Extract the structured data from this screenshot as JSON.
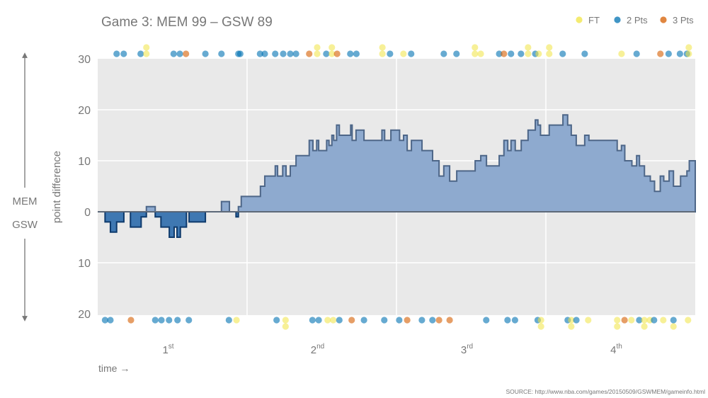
{
  "chart_data": {
    "type": "area",
    "title": "Game 3: MEM 99  –  GSW 89",
    "ylabel": "point difference",
    "xlabel": "time →",
    "team_up": "MEM",
    "team_down": "GSW",
    "source": "SOURCE: http://www.nba.com/games/20150509/GSWMEM/gameinfo.html",
    "x_unit": "game minutes",
    "xlim": [
      0,
      48
    ],
    "ylim": [
      -20,
      30
    ],
    "y_ticks": [
      {
        "value": 30,
        "label": "30"
      },
      {
        "value": 20,
        "label": "20"
      },
      {
        "value": 10,
        "label": "10"
      },
      {
        "value": 0,
        "label": "0"
      },
      {
        "value": -10,
        "label": "10"
      },
      {
        "value": -20,
        "label": "20"
      }
    ],
    "quarters": [
      {
        "base": "1",
        "sup": "st"
      },
      {
        "base": "2",
        "sup": "nd"
      },
      {
        "base": "3",
        "sup": "rd"
      },
      {
        "base": "4",
        "sup": "th"
      }
    ],
    "grid": true,
    "legend": {
      "position": "top-right",
      "items": [
        {
          "key": "FT",
          "label": "FT",
          "color": "#f0e442"
        },
        {
          "key": "2",
          "label": "2 Pts",
          "color": "#0072b2"
        },
        {
          "key": "3",
          "label": "3 Pts",
          "color": "#d55e00"
        }
      ]
    },
    "colors": {
      "lead_fill": "#8eaacf",
      "lead_stroke": "#4d6688",
      "trail_fill": "#3f78b2",
      "trail_stroke": "#0e3a6c"
    },
    "margin_steps": [
      [
        0,
        0
      ],
      [
        0.59,
        -2
      ],
      [
        1.02,
        -4
      ],
      [
        1.52,
        -2
      ],
      [
        2.1,
        0
      ],
      [
        2.63,
        -3
      ],
      [
        3.49,
        -1
      ],
      [
        3.91,
        1
      ],
      [
        4.62,
        -1
      ],
      [
        5.08,
        -3
      ],
      [
        5.75,
        -5
      ],
      [
        6.14,
        -3
      ],
      [
        6.37,
        -5
      ],
      [
        6.64,
        -3
      ],
      [
        7.13,
        0
      ],
      [
        7.34,
        -2
      ],
      [
        8.65,
        0
      ],
      [
        9.94,
        2
      ],
      [
        10.58,
        0
      ],
      [
        11.11,
        -1
      ],
      [
        11.3,
        1
      ],
      [
        11.53,
        3
      ],
      [
        13.07,
        5
      ],
      [
        13.42,
        7
      ],
      [
        14.26,
        9
      ],
      [
        14.45,
        7
      ],
      [
        14.86,
        9
      ],
      [
        15.13,
        7
      ],
      [
        15.47,
        9
      ],
      [
        15.93,
        11
      ],
      [
        16.99,
        14
      ],
      [
        17.29,
        12
      ],
      [
        17.59,
        14
      ],
      [
        17.75,
        12
      ],
      [
        18.39,
        14
      ],
      [
        18.58,
        13
      ],
      [
        18.81,
        15
      ],
      [
        18.96,
        14
      ],
      [
        19.19,
        17
      ],
      [
        19.41,
        15
      ],
      [
        20.32,
        17
      ],
      [
        20.44,
        14
      ],
      [
        20.75,
        16
      ],
      [
        21.39,
        14
      ],
      [
        22.83,
        16
      ],
      [
        23.05,
        14
      ],
      [
        23.55,
        16
      ],
      [
        24.25,
        14
      ],
      [
        24.57,
        15
      ],
      [
        24.86,
        12
      ],
      [
        25.2,
        14
      ],
      [
        26.05,
        12
      ],
      [
        26.9,
        10
      ],
      [
        27.42,
        7
      ],
      [
        27.8,
        9
      ],
      [
        28.27,
        6
      ],
      [
        28.84,
        8
      ],
      [
        30.32,
        10
      ],
      [
        30.77,
        11
      ],
      [
        31.23,
        9
      ],
      [
        32.25,
        11
      ],
      [
        32.63,
        14
      ],
      [
        32.94,
        12
      ],
      [
        33.2,
        14
      ],
      [
        33.54,
        12
      ],
      [
        34.02,
        14
      ],
      [
        34.57,
        16
      ],
      [
        35.15,
        18
      ],
      [
        35.36,
        17
      ],
      [
        35.57,
        15
      ],
      [
        36.27,
        17
      ],
      [
        37.37,
        19
      ],
      [
        37.75,
        17
      ],
      [
        38.04,
        15
      ],
      [
        38.44,
        13
      ],
      [
        39.12,
        15
      ],
      [
        39.46,
        14
      ],
      [
        41.73,
        12
      ],
      [
        42.07,
        13
      ],
      [
        42.34,
        10
      ],
      [
        42.91,
        9
      ],
      [
        43.29,
        11
      ],
      [
        43.52,
        9
      ],
      [
        43.92,
        7
      ],
      [
        44.39,
        6
      ],
      [
        44.73,
        4
      ],
      [
        45.19,
        7
      ],
      [
        45.47,
        6
      ],
      [
        45.9,
        8
      ],
      [
        46.25,
        5
      ],
      [
        46.82,
        7
      ],
      [
        47.33,
        8
      ],
      [
        47.52,
        10
      ],
      [
        48,
        10
      ]
    ],
    "mem_scores": [
      [
        1.52,
        "2"
      ],
      [
        2.09,
        "2"
      ],
      [
        3.45,
        "2"
      ],
      [
        3.91,
        "FT"
      ],
      [
        3.91,
        "FT"
      ],
      [
        6.1,
        "2"
      ],
      [
        6.6,
        "2"
      ],
      [
        7.09,
        "3"
      ],
      [
        8.65,
        "2"
      ],
      [
        9.94,
        "2"
      ],
      [
        11.3,
        "2"
      ],
      [
        11.45,
        "2"
      ],
      [
        13.04,
        "2"
      ],
      [
        13.42,
        "2"
      ],
      [
        14.26,
        "2"
      ],
      [
        14.9,
        "2"
      ],
      [
        15.47,
        "2"
      ],
      [
        15.93,
        "2"
      ],
      [
        16.99,
        "3"
      ],
      [
        17.63,
        "FT"
      ],
      [
        17.63,
        "FT"
      ],
      [
        18.36,
        "2"
      ],
      [
        18.81,
        "FT"
      ],
      [
        18.81,
        "FT"
      ],
      [
        19.23,
        "3"
      ],
      [
        20.29,
        "2"
      ],
      [
        20.78,
        "2"
      ],
      [
        22.87,
        "FT"
      ],
      [
        22.87,
        "FT"
      ],
      [
        23.48,
        "2"
      ],
      [
        24.56,
        "FT"
      ],
      [
        25.18,
        "2"
      ],
      [
        27.8,
        "2"
      ],
      [
        28.82,
        "2"
      ],
      [
        30.3,
        "FT"
      ],
      [
        30.3,
        "FT"
      ],
      [
        30.77,
        "FT"
      ],
      [
        32.25,
        "2"
      ],
      [
        32.63,
        "3"
      ],
      [
        33.2,
        "2"
      ],
      [
        34.0,
        "2"
      ],
      [
        34.57,
        "FT"
      ],
      [
        34.57,
        "FT"
      ],
      [
        35.15,
        "2"
      ],
      [
        35.42,
        "FT"
      ],
      [
        36.27,
        "FT"
      ],
      [
        36.27,
        "FT"
      ],
      [
        37.35,
        "2"
      ],
      [
        39.12,
        "2"
      ],
      [
        42.08,
        "FT"
      ],
      [
        43.29,
        "2"
      ],
      [
        45.2,
        "3"
      ],
      [
        45.86,
        "2"
      ],
      [
        46.77,
        "2"
      ],
      [
        47.33,
        "2"
      ],
      [
        47.48,
        "FT"
      ],
      [
        47.48,
        "FT"
      ]
    ],
    "gsw_scores": [
      [
        0.59,
        "2"
      ],
      [
        1.02,
        "2"
      ],
      [
        2.67,
        "3"
      ],
      [
        4.62,
        "2"
      ],
      [
        5.12,
        "2"
      ],
      [
        5.73,
        "2"
      ],
      [
        6.41,
        "2"
      ],
      [
        7.32,
        "2"
      ],
      [
        10.54,
        "2"
      ],
      [
        11.15,
        "FT"
      ],
      [
        14.37,
        "2"
      ],
      [
        15.09,
        "FT"
      ],
      [
        15.09,
        "FT"
      ],
      [
        17.25,
        "2"
      ],
      [
        17.75,
        "2"
      ],
      [
        18.47,
        "FT"
      ],
      [
        18.92,
        "FT"
      ],
      [
        19.41,
        "2"
      ],
      [
        20.4,
        "3"
      ],
      [
        21.39,
        "2"
      ],
      [
        23.02,
        "2"
      ],
      [
        24.22,
        "2"
      ],
      [
        24.86,
        "3"
      ],
      [
        26.04,
        "2"
      ],
      [
        26.89,
        "2"
      ],
      [
        27.42,
        "3"
      ],
      [
        28.27,
        "3"
      ],
      [
        31.21,
        "2"
      ],
      [
        32.92,
        "2"
      ],
      [
        33.52,
        "2"
      ],
      [
        35.34,
        "2"
      ],
      [
        35.61,
        "FT"
      ],
      [
        35.61,
        "FT"
      ],
      [
        37.75,
        "2"
      ],
      [
        38.04,
        "FT"
      ],
      [
        38.04,
        "FT"
      ],
      [
        38.45,
        "2"
      ],
      [
        39.4,
        "FT"
      ],
      [
        41.73,
        "FT"
      ],
      [
        41.73,
        "FT"
      ],
      [
        42.32,
        "3"
      ],
      [
        42.87,
        "FT"
      ],
      [
        43.5,
        "2"
      ],
      [
        43.91,
        "FT"
      ],
      [
        43.91,
        "FT"
      ],
      [
        44.35,
        "FT"
      ],
      [
        44.69,
        "2"
      ],
      [
        45.43,
        "FT"
      ],
      [
        46.25,
        "2"
      ],
      [
        46.25,
        "FT"
      ],
      [
        47.42,
        "FT"
      ]
    ]
  }
}
